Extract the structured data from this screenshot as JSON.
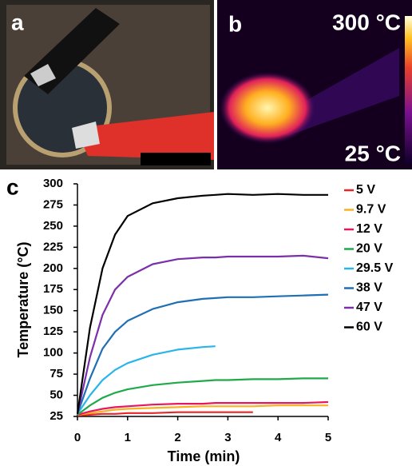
{
  "panels": {
    "a": "a",
    "b": "b",
    "b_max": "300 °C",
    "b_min": "25 °C",
    "c": "c"
  },
  "chart_data": {
    "type": "line",
    "xlabel": "Time (min)",
    "ylabel": "Temperature (°C)",
    "x": [
      0,
      0.25,
      0.5,
      0.75,
      1,
      1.5,
      2,
      2.5,
      2.75,
      3,
      3.5,
      4,
      4.5,
      5
    ],
    "xlim": [
      0,
      5
    ],
    "xticks": [
      0,
      1,
      2,
      3,
      4,
      5
    ],
    "ylim": [
      25,
      300
    ],
    "yticks": [
      25,
      50,
      75,
      100,
      125,
      150,
      175,
      200,
      225,
      250,
      275,
      300
    ],
    "series": [
      {
        "name": "5 V",
        "color": "#e8262a",
        "values": [
          26,
          27,
          28,
          28,
          29,
          29,
          30,
          30,
          30,
          30,
          30,
          null,
          null,
          null
        ]
      },
      {
        "name": "9.7 V",
        "color": "#f5b324",
        "values": [
          27,
          29,
          31,
          33,
          34,
          35,
          36,
          37,
          37,
          37,
          37,
          38,
          38,
          38
        ]
      },
      {
        "name": "12 V",
        "color": "#e8175d",
        "values": [
          27,
          31,
          34,
          36,
          37,
          39,
          40,
          40,
          41,
          41,
          41,
          41,
          41,
          42
        ]
      },
      {
        "name": "20 V",
        "color": "#1faa4a",
        "values": [
          27,
          38,
          47,
          53,
          57,
          62,
          65,
          67,
          68,
          68,
          69,
          69,
          70,
          70
        ]
      },
      {
        "name": "29.5 V",
        "color": "#29b5e8",
        "values": [
          28,
          50,
          68,
          80,
          88,
          98,
          104,
          107,
          108,
          null,
          null,
          null,
          null,
          null
        ]
      },
      {
        "name": "38 V",
        "color": "#1f6fb5",
        "values": [
          28,
          70,
          105,
          125,
          138,
          152,
          160,
          164,
          165,
          166,
          166,
          167,
          168,
          169
        ]
      },
      {
        "name": "47 V",
        "color": "#7b2fa8",
        "values": [
          28,
          95,
          145,
          175,
          190,
          205,
          211,
          213,
          213,
          214,
          214,
          214,
          215,
          212
        ]
      },
      {
        "name": "60 V",
        "color": "#000000",
        "values": [
          28,
          130,
          200,
          240,
          262,
          277,
          283,
          286,
          287,
          288,
          287,
          288,
          287,
          287
        ]
      }
    ]
  }
}
